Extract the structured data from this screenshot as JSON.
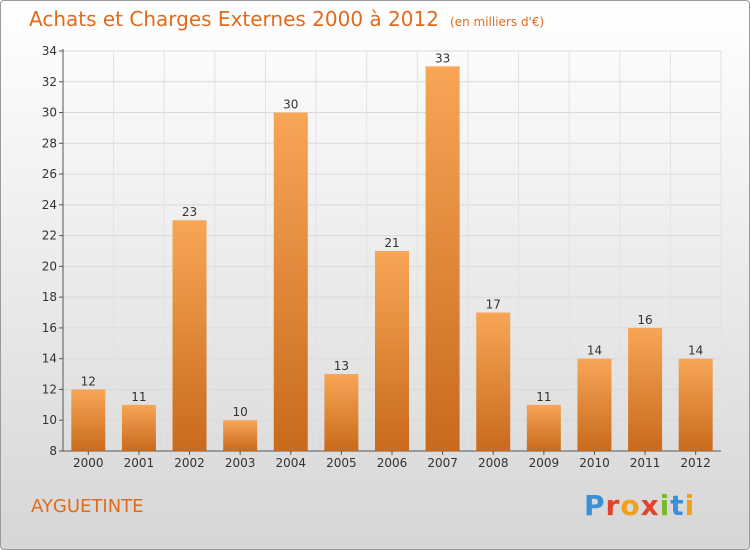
{
  "title": "Achats et Charges Externes 2000 à 2012",
  "unit_note": "(en milliers d'€)",
  "commune": "AYGUETINTE",
  "logo": {
    "letters": [
      "P",
      "r",
      "o",
      "x",
      "i",
      "t",
      "i"
    ],
    "colors": [
      "#3a8fd6",
      "#e2432d",
      "#f2a01c",
      "#e2432d",
      "#7ab82d",
      "#3a8fd6",
      "#f2a01c"
    ]
  },
  "chart_data": {
    "type": "bar",
    "categories": [
      "2000",
      "2001",
      "2002",
      "2003",
      "2004",
      "2005",
      "2006",
      "2007",
      "2008",
      "2009",
      "2010",
      "2011",
      "2012"
    ],
    "values": [
      12,
      11,
      23,
      10,
      30,
      13,
      21,
      33,
      17,
      11,
      14,
      16,
      14
    ],
    "ylim": [
      8,
      34
    ],
    "yticks": [
      8,
      10,
      12,
      14,
      16,
      18,
      20,
      22,
      24,
      26,
      28,
      30,
      32,
      34
    ],
    "grid": true,
    "bar_color_top": "#f7a656",
    "bar_color_bottom": "#c96a1c"
  }
}
